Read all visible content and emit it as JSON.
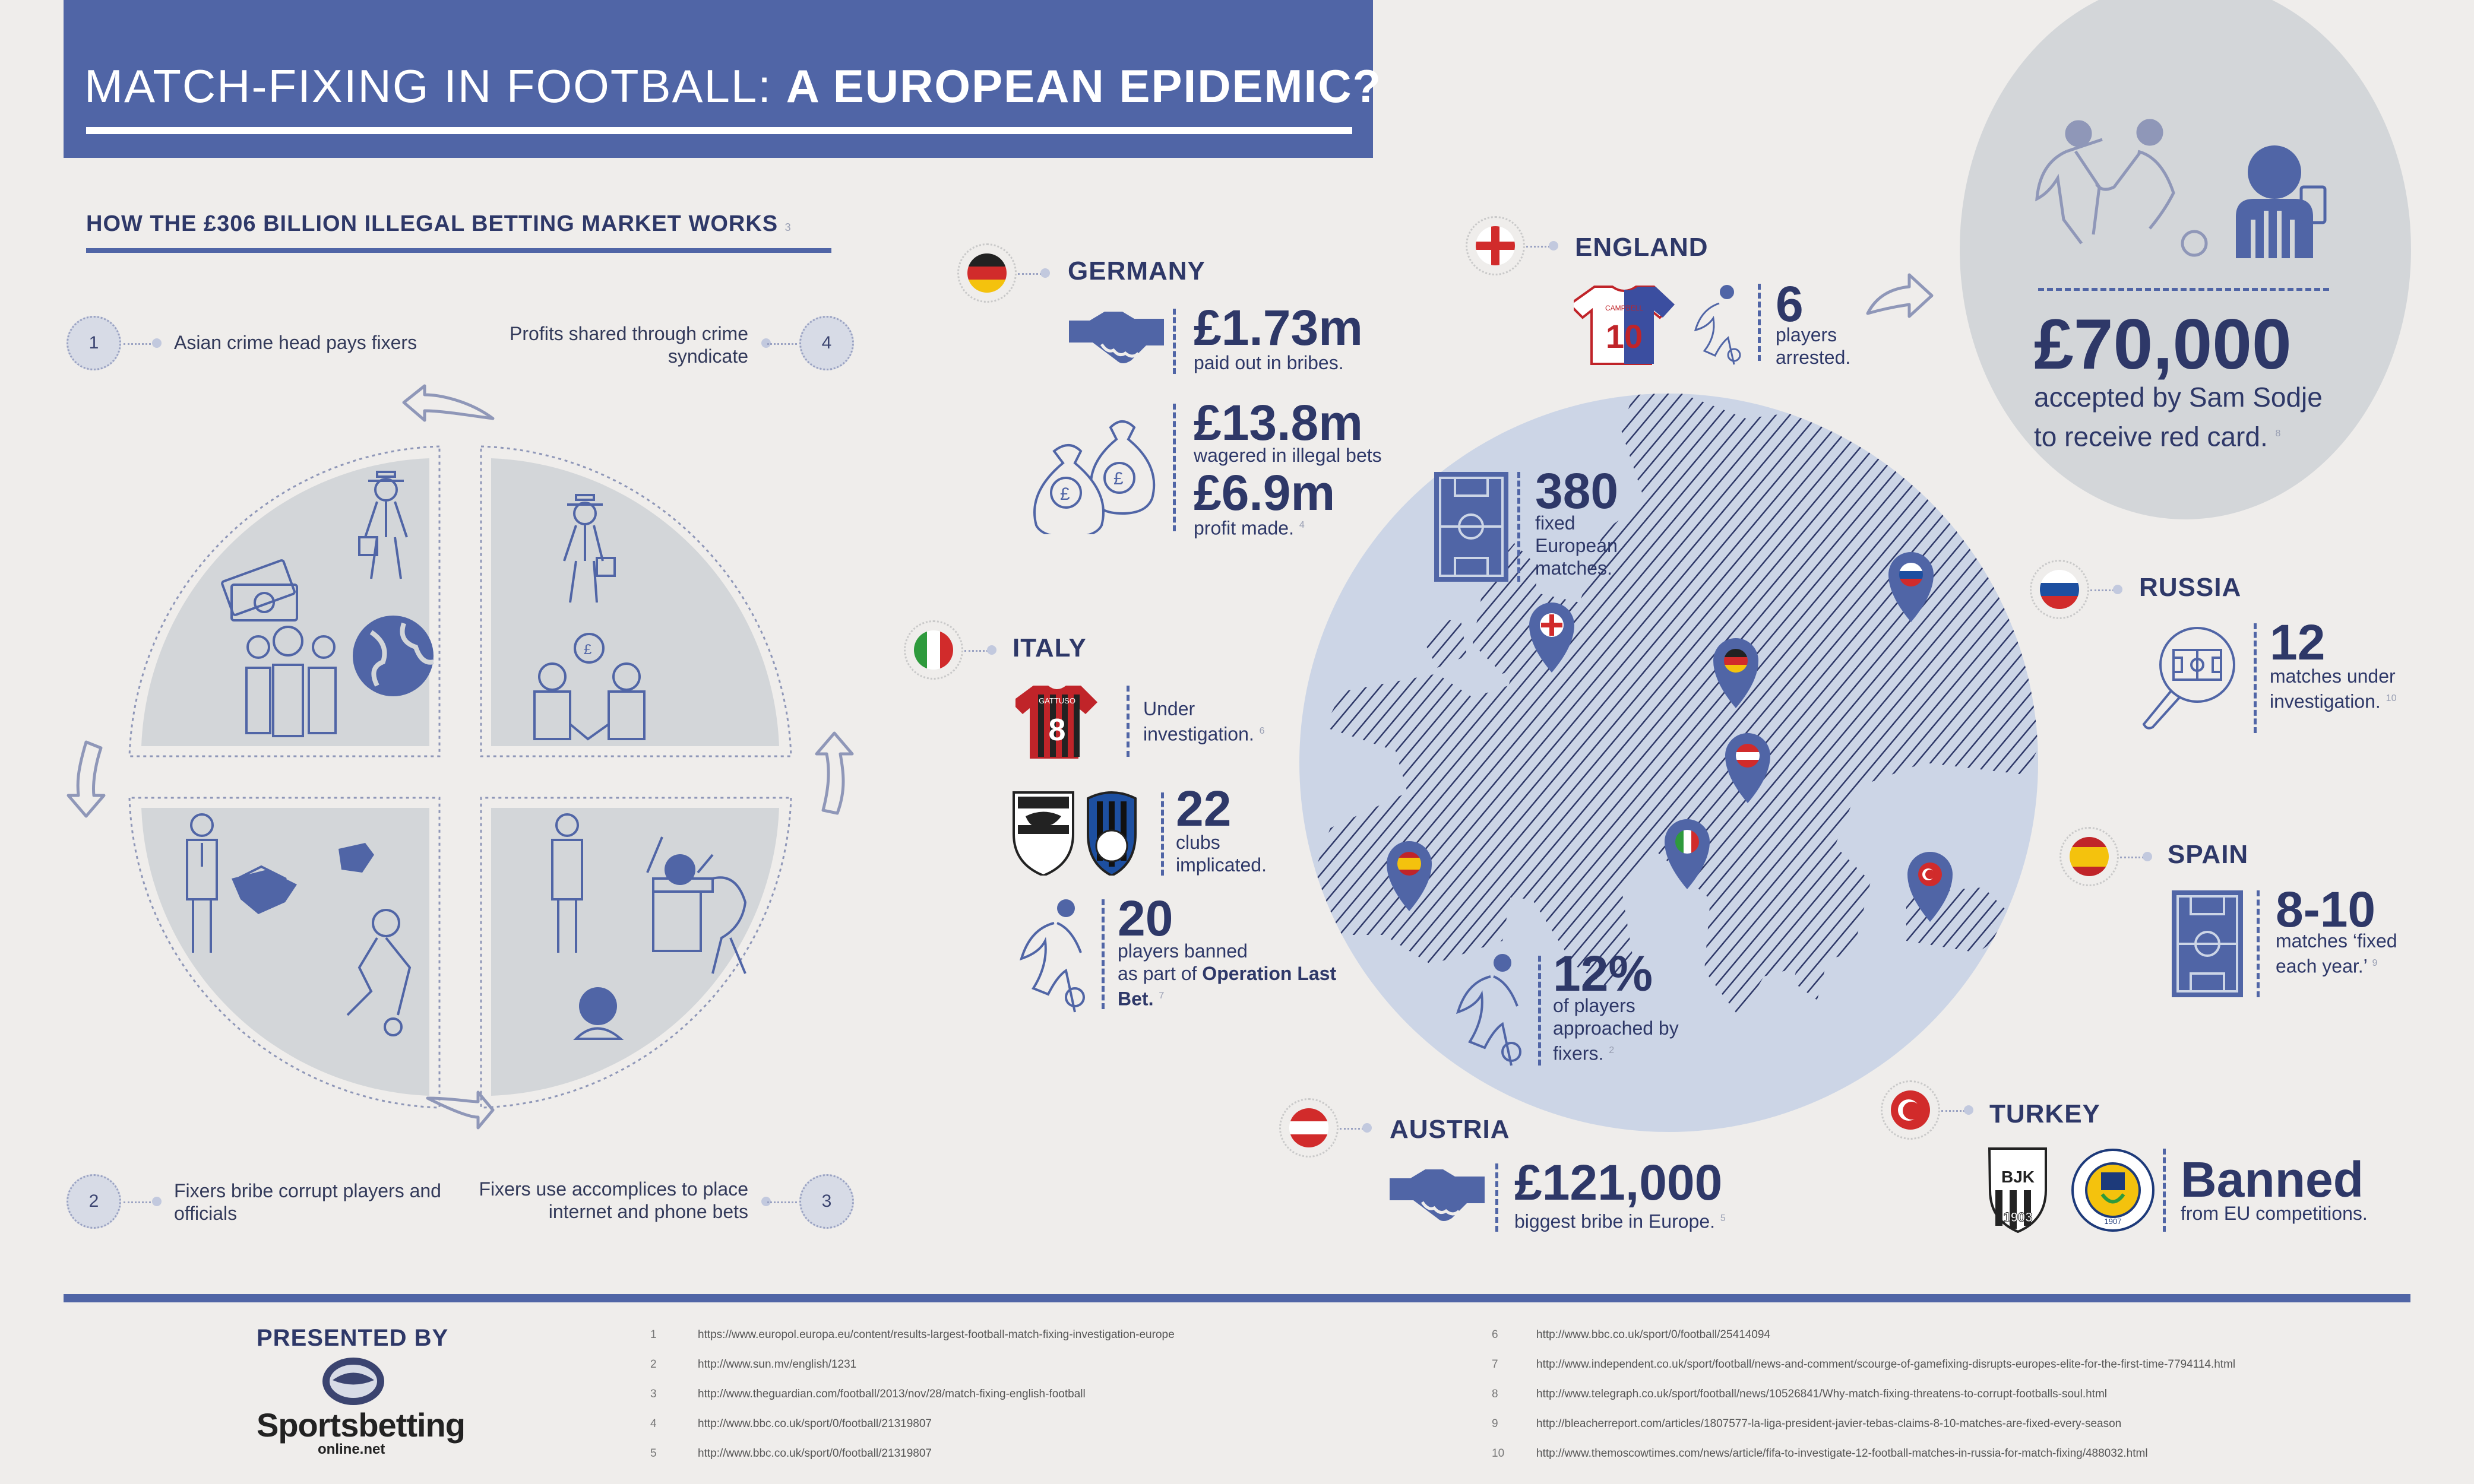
{
  "title": {
    "light": "MATCH-FIXING IN FOOTBALL: ",
    "bold": "A EUROPEAN EPIDEMIC?"
  },
  "market": {
    "heading": "HOW THE £306 BILLION ILLEGAL BETTING MARKET WORKS",
    "ref": "3",
    "steps": [
      {
        "num": "1",
        "text": "Asian crime head pays fixers"
      },
      {
        "num": "2",
        "text": "Fixers bribe corrupt players and officials"
      },
      {
        "num": "3",
        "text": "Fixers use accomplices to place internet and phone bets"
      },
      {
        "num": "4",
        "text": "Profits shared through crime syndicate"
      }
    ]
  },
  "germany": {
    "name": "GERMANY",
    "bribes_value": "£1.73m",
    "bribes_label": "paid out in bribes.",
    "wagered_value": "£13.8m",
    "wagered_label": "wagered in illegal bets",
    "profit_value": "£6.9m",
    "profit_label": "profit made.",
    "profit_ref": "4"
  },
  "italy": {
    "name": "ITALY",
    "shirt_number": "8",
    "shirt_name": "GATTUSO",
    "investigation": "Under investigation.",
    "investigation_ref": "6",
    "clubs_value": "22",
    "clubs_label": "clubs implicated.",
    "banned_value": "20",
    "banned_label_1": "players banned",
    "banned_label_2": "as part of ",
    "banned_bold": "Operation Last Bet.",
    "banned_ref": "7"
  },
  "england": {
    "name": "ENGLAND",
    "shirt_number": "10",
    "shirt_name": "CAMPBELL",
    "arrested_value": "6",
    "arrested_label": "players arrested."
  },
  "sodje": {
    "value": "£70,000",
    "label": "accepted by Sam Sodje to receive red card.",
    "ref": "8"
  },
  "europe": {
    "fixed_value": "380",
    "fixed_label": "fixed European matches.",
    "approached_value": "12%",
    "approached_label": "of players approached by fixers.",
    "approached_ref": "2"
  },
  "russia": {
    "name": "RUSSIA",
    "value": "12",
    "label": "matches under investigation.",
    "ref": "10"
  },
  "spain": {
    "name": "SPAIN",
    "value": "8-10",
    "label": "matches ‘fixed each year.’",
    "ref": "9"
  },
  "turkey": {
    "name": "TURKEY",
    "value": "Banned",
    "label": "from EU competitions.",
    "club1": "BJK",
    "club1_year": "1903",
    "club2_year": "1907"
  },
  "austria": {
    "name": "AUSTRIA",
    "value": "£121,000",
    "label": "biggest bribe in Europe.",
    "ref": "5"
  },
  "presented_by": "PRESENTED BY",
  "brand": {
    "name": "Sportsbetting",
    "domain": "online.net"
  },
  "references": [
    {
      "n": "1",
      "url": "https://www.europol.europa.eu/content/results-largest-football-match-fixing-investigation-europe"
    },
    {
      "n": "2",
      "url": "http://www.sun.mv/english/1231"
    },
    {
      "n": "3",
      "url": "http://www.theguardian.com/football/2013/nov/28/match-fixing-english-football"
    },
    {
      "n": "4",
      "url": "http://www.bbc.co.uk/sport/0/football/21319807"
    },
    {
      "n": "5",
      "url": "http://www.bbc.co.uk/sport/0/football/21319807"
    },
    {
      "n": "6",
      "url": "http://www.bbc.co.uk/sport/0/football/25414094"
    },
    {
      "n": "7",
      "url": "http://www.independent.co.uk/sport/football/news-and-comment/scourge-of-gamefixing-disrupts-europes-elite-for-the-first-time-7794114.html"
    },
    {
      "n": "8",
      "url": "http://www.telegraph.co.uk/sport/football/news/10526841/Why-match-fixing-threatens-to-corrupt-footballs-soul.html"
    },
    {
      "n": "9",
      "url": "http://bleacherreport.com/articles/1807577-la-liga-president-javier-tebas-claims-8-10-matches-are-fixed-every-season"
    },
    {
      "n": "10",
      "url": "http://www.themoscowtimes.com/news/article/fifa-to-investigate-12-football-matches-in-russia-for-match-fixing/488032.html"
    }
  ],
  "colors": {
    "accent": "#5065a6",
    "navy": "#2e3868",
    "background": "#efedeb",
    "grey_fill": "#d3d6d9",
    "map_fill": "#ccd5e6"
  }
}
